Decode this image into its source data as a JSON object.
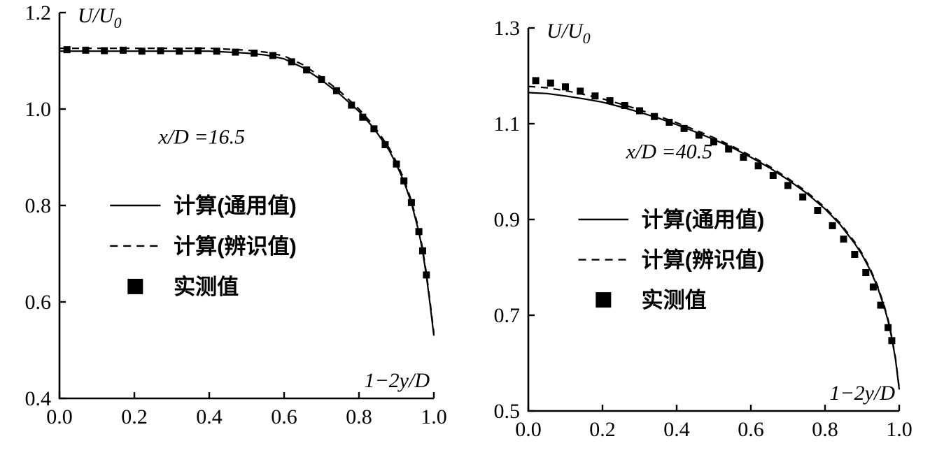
{
  "page": {
    "background": "#ffffff",
    "ink": "#000000"
  },
  "chart_data": [
    {
      "id": "left",
      "type": "line",
      "annotation": "x/D =16.5",
      "y_axis_title": {
        "text": "U/U",
        "sub": "0"
      },
      "x_axis_title": "1−2y/D",
      "xlim": [
        0.0,
        1.0
      ],
      "ylim": [
        0.4,
        1.2
      ],
      "xticks": [
        0.0,
        0.2,
        0.4,
        0.6,
        0.8,
        1.0
      ],
      "yticks": [
        0.4,
        0.6,
        0.8,
        1.0,
        1.2
      ],
      "legend": [
        {
          "marker": "solid-line",
          "label": "计算(通用值)"
        },
        {
          "marker": "dashed-line",
          "label": "计算(辨识值)"
        },
        {
          "marker": "filled-square",
          "label": "实测值"
        }
      ],
      "series": [
        {
          "name": "计算(通用值)",
          "style": "solid",
          "points": [
            [
              0,
              1.12
            ],
            [
              0.1,
              1.12
            ],
            [
              0.2,
              1.12
            ],
            [
              0.3,
              1.12
            ],
            [
              0.4,
              1.12
            ],
            [
              0.5,
              1.116
            ],
            [
              0.55,
              1.112
            ],
            [
              0.6,
              1.104
            ],
            [
              0.65,
              1.086
            ],
            [
              0.7,
              1.06
            ],
            [
              0.75,
              1.03
            ],
            [
              0.8,
              0.995
            ],
            [
              0.84,
              0.96
            ],
            [
              0.88,
              0.915
            ],
            [
              0.9,
              0.885
            ],
            [
              0.92,
              0.85
            ],
            [
              0.94,
              0.805
            ],
            [
              0.96,
              0.745
            ],
            [
              0.97,
              0.705
            ],
            [
              0.98,
              0.655
            ],
            [
              0.99,
              0.595
            ],
            [
              1.0,
              0.53
            ]
          ]
        },
        {
          "name": "计算(辨识值)",
          "style": "dashed",
          "points": [
            [
              0,
              1.126
            ],
            [
              0.1,
              1.126
            ],
            [
              0.2,
              1.126
            ],
            [
              0.3,
              1.126
            ],
            [
              0.4,
              1.126
            ],
            [
              0.5,
              1.122
            ],
            [
              0.55,
              1.118
            ],
            [
              0.6,
              1.11
            ],
            [
              0.65,
              1.092
            ],
            [
              0.7,
              1.066
            ],
            [
              0.75,
              1.036
            ],
            [
              0.8,
              1.0
            ],
            [
              0.84,
              0.965
            ],
            [
              0.88,
              0.92
            ],
            [
              0.9,
              0.89
            ],
            [
              0.92,
              0.855
            ],
            [
              0.94,
              0.81
            ],
            [
              0.96,
              0.75
            ],
            [
              0.97,
              0.71
            ],
            [
              0.98,
              0.66
            ],
            [
              0.99,
              0.6
            ],
            [
              1.0,
              0.535
            ]
          ]
        },
        {
          "name": "实测值",
          "style": "squares",
          "points": [
            [
              0.02,
              1.123
            ],
            [
              0.07,
              1.122
            ],
            [
              0.12,
              1.121
            ],
            [
              0.17,
              1.122
            ],
            [
              0.22,
              1.12
            ],
            [
              0.27,
              1.121
            ],
            [
              0.32,
              1.12
            ],
            [
              0.37,
              1.121
            ],
            [
              0.42,
              1.12
            ],
            [
              0.47,
              1.118
            ],
            [
              0.52,
              1.116
            ],
            [
              0.57,
              1.111
            ],
            [
              0.62,
              1.098
            ],
            [
              0.66,
              1.081
            ],
            [
              0.7,
              1.061
            ],
            [
              0.74,
              1.038
            ],
            [
              0.78,
              1.008
            ],
            [
              0.81,
              0.983
            ],
            [
              0.84,
              0.959
            ],
            [
              0.87,
              0.926
            ],
            [
              0.9,
              0.886
            ],
            [
              0.92,
              0.851
            ],
            [
              0.94,
              0.806
            ],
            [
              0.96,
              0.746
            ],
            [
              0.97,
              0.706
            ],
            [
              0.98,
              0.656
            ]
          ]
        }
      ]
    },
    {
      "id": "right",
      "type": "line",
      "annotation": "x/D =40.5",
      "y_axis_title": {
        "text": "U/U",
        "sub": "0"
      },
      "x_axis_title": "1−2y/D",
      "xlim": [
        0.0,
        1.0
      ],
      "ylim": [
        0.5,
        1.3
      ],
      "xticks": [
        0.0,
        0.2,
        0.4,
        0.6,
        0.8,
        1.0
      ],
      "yticks": [
        0.5,
        0.7,
        0.9,
        1.1,
        1.3
      ],
      "legend": [
        {
          "marker": "solid-line",
          "label": "计算(通用值)"
        },
        {
          "marker": "dashed-line",
          "label": "计算(辨识值)"
        },
        {
          "marker": "filled-square",
          "label": "实测值"
        }
      ],
      "series": [
        {
          "name": "计算(通用值)",
          "style": "solid",
          "points": [
            [
              0,
              1.165
            ],
            [
              0.05,
              1.163
            ],
            [
              0.1,
              1.158
            ],
            [
              0.15,
              1.152
            ],
            [
              0.2,
              1.145
            ],
            [
              0.25,
              1.135
            ],
            [
              0.3,
              1.124
            ],
            [
              0.35,
              1.112
            ],
            [
              0.4,
              1.098
            ],
            [
              0.45,
              1.083
            ],
            [
              0.5,
              1.067
            ],
            [
              0.55,
              1.05
            ],
            [
              0.6,
              1.03
            ],
            [
              0.65,
              1.008
            ],
            [
              0.7,
              0.983
            ],
            [
              0.75,
              0.955
            ],
            [
              0.8,
              0.922
            ],
            [
              0.84,
              0.89
            ],
            [
              0.88,
              0.85
            ],
            [
              0.9,
              0.826
            ],
            [
              0.92,
              0.797
            ],
            [
              0.94,
              0.762
            ],
            [
              0.96,
              0.716
            ],
            [
              0.97,
              0.688
            ],
            [
              0.98,
              0.652
            ],
            [
              0.99,
              0.608
            ],
            [
              1.0,
              0.545
            ]
          ]
        },
        {
          "name": "计算(辨识值)",
          "style": "dashed",
          "points": [
            [
              0,
              1.178
            ],
            [
              0.05,
              1.175
            ],
            [
              0.1,
              1.169
            ],
            [
              0.15,
              1.161
            ],
            [
              0.2,
              1.152
            ],
            [
              0.25,
              1.141
            ],
            [
              0.3,
              1.129
            ],
            [
              0.35,
              1.116
            ],
            [
              0.4,
              1.102
            ],
            [
              0.45,
              1.087
            ],
            [
              0.5,
              1.071
            ],
            [
              0.55,
              1.053
            ],
            [
              0.6,
              1.033
            ],
            [
              0.65,
              1.011
            ],
            [
              0.7,
              0.986
            ],
            [
              0.75,
              0.958
            ],
            [
              0.8,
              0.925
            ],
            [
              0.84,
              0.893
            ],
            [
              0.88,
              0.853
            ],
            [
              0.9,
              0.829
            ],
            [
              0.92,
              0.8
            ],
            [
              0.94,
              0.765
            ],
            [
              0.96,
              0.719
            ],
            [
              0.97,
              0.691
            ],
            [
              0.98,
              0.655
            ],
            [
              0.99,
              0.611
            ],
            [
              1.0,
              0.548
            ]
          ]
        },
        {
          "name": "实测值",
          "style": "squares",
          "points": [
            [
              0.02,
              1.19
            ],
            [
              0.06,
              1.185
            ],
            [
              0.1,
              1.177
            ],
            [
              0.14,
              1.168
            ],
            [
              0.18,
              1.158
            ],
            [
              0.22,
              1.148
            ],
            [
              0.26,
              1.138
            ],
            [
              0.3,
              1.127
            ],
            [
              0.34,
              1.115
            ],
            [
              0.38,
              1.103
            ],
            [
              0.42,
              1.09
            ],
            [
              0.46,
              1.076
            ],
            [
              0.5,
              1.062
            ],
            [
              0.54,
              1.047
            ],
            [
              0.58,
              1.03
            ],
            [
              0.62,
              1.012
            ],
            [
              0.66,
              0.992
            ],
            [
              0.7,
              0.971
            ],
            [
              0.74,
              0.947
            ],
            [
              0.78,
              0.919
            ],
            [
              0.82,
              0.887
            ],
            [
              0.85,
              0.859
            ],
            [
              0.88,
              0.827
            ],
            [
              0.91,
              0.789
            ],
            [
              0.93,
              0.759
            ],
            [
              0.95,
              0.721
            ],
            [
              0.97,
              0.674
            ],
            [
              0.98,
              0.647
            ]
          ]
        }
      ]
    }
  ]
}
